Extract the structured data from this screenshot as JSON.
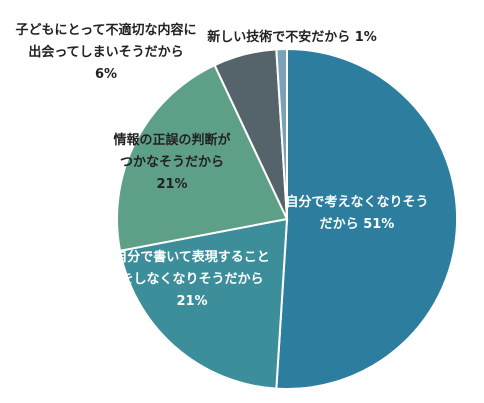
{
  "chart_data": {
    "type": "pie",
    "title": "",
    "slices": [
      {
        "label_lines": [
          "自分で考えなくなりそう",
          "だから 51%"
        ],
        "value": 51,
        "color": "#2c7d9e",
        "text_color": "#ffffff"
      },
      {
        "label_lines": [
          "自分で書いて表現すること",
          "をしなくなりそうだから",
          "21%"
        ],
        "value": 21,
        "color": "#3c8f9a",
        "text_color": "#ffffff"
      },
      {
        "label_lines": [
          "情報の正誤の判断が",
          "つかなそうだから",
          "21%"
        ],
        "value": 21,
        "color": "#5e9f88",
        "text_color": "#222222"
      },
      {
        "label_lines": [
          "子どもにとって不適切な内容に",
          "出会ってしまいそうだから",
          "6%"
        ],
        "value": 6,
        "color": "#55646a",
        "text_color": "#222222"
      },
      {
        "label_lines": [
          "新しい技術で不安だから 1%"
        ],
        "value": 1,
        "color": "#7aa0ba",
        "text_color": "#222222"
      }
    ]
  }
}
